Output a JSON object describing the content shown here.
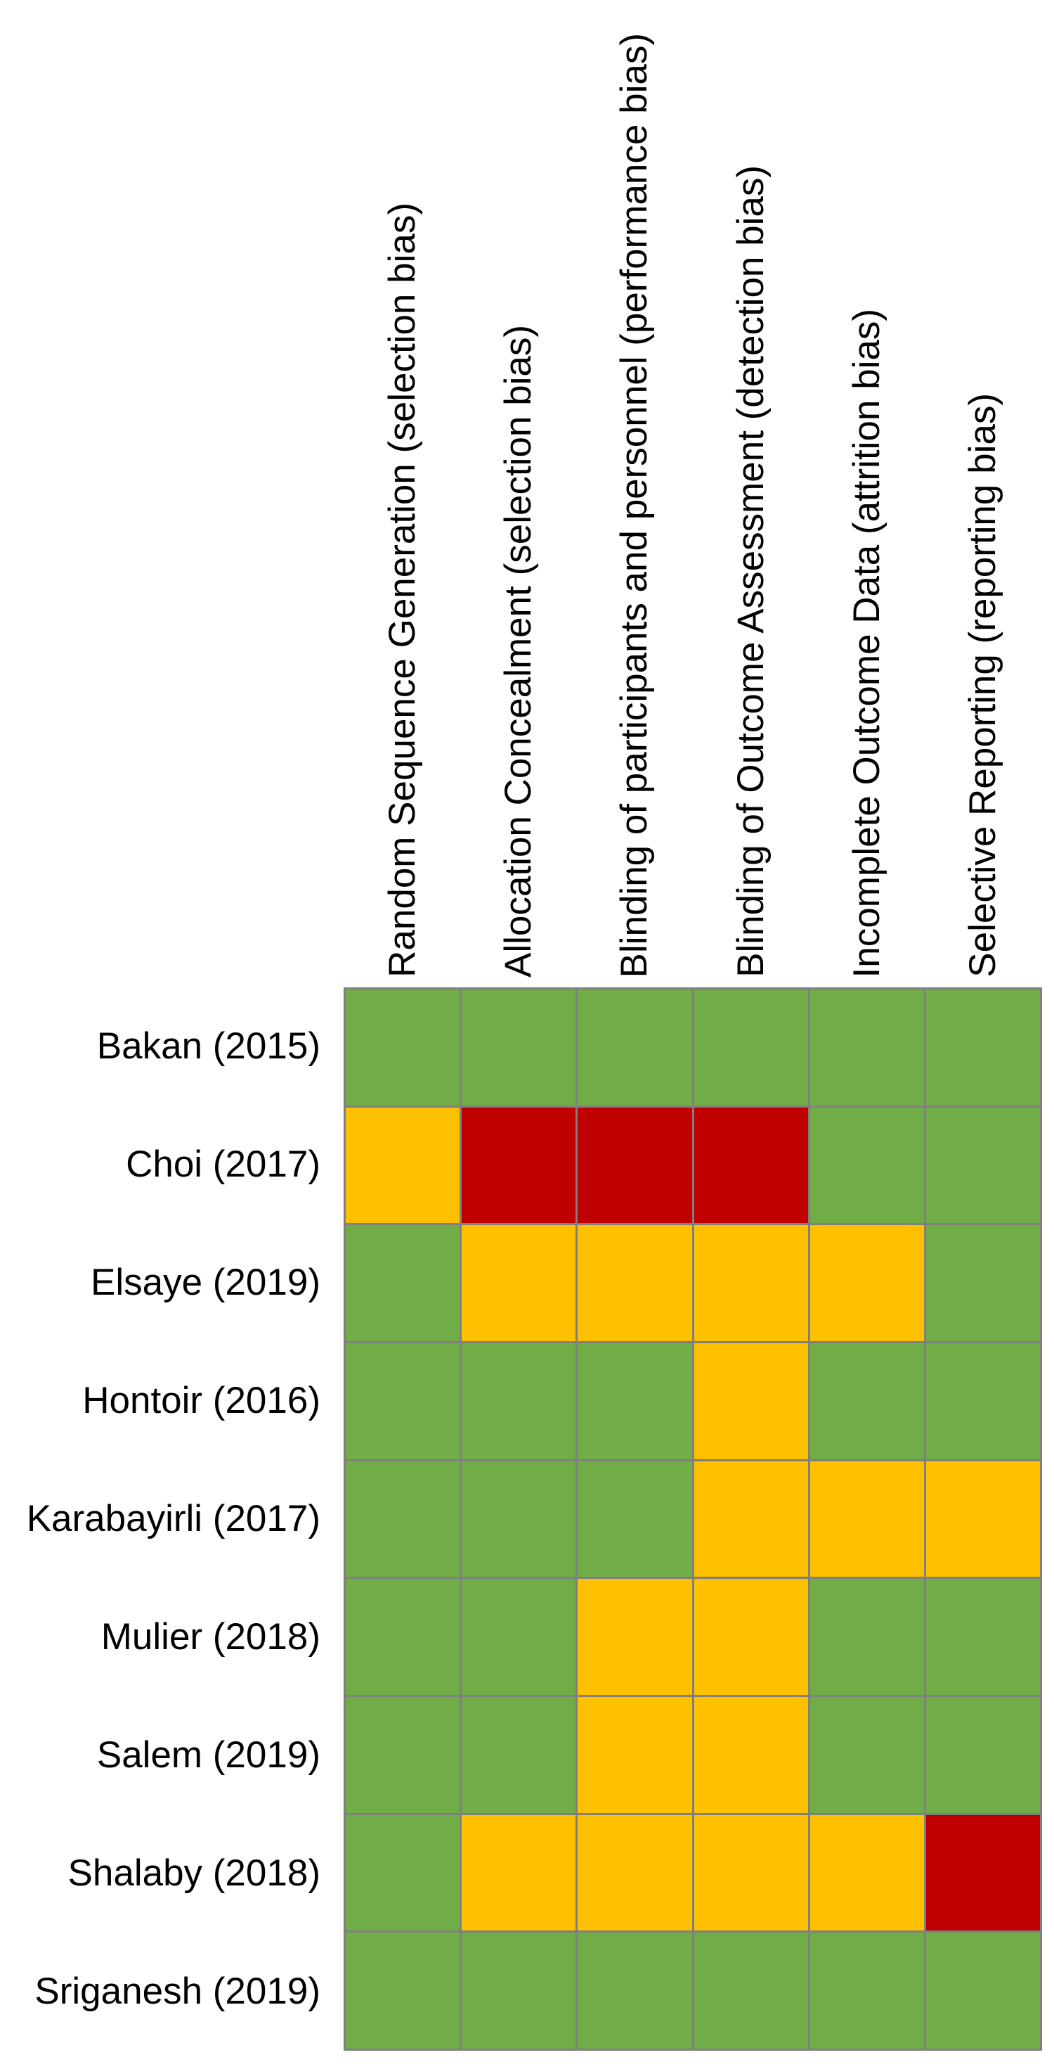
{
  "chart_data": {
    "type": "heatmap",
    "title": "",
    "xlabel": "",
    "ylabel": "",
    "legend_position": "none",
    "grid": true,
    "background": "#FFFFFF",
    "grid_line_color": "#7F7F7F",
    "color_map": {
      "low": "#70AD47",
      "unclear": "#FFC000",
      "high": "#C00000"
    },
    "columns": [
      "Random Sequence Generation (selection bias)",
      "Allocation Concealment (selection bias)",
      "Blinding of participants and personnel (performance bias)",
      "Blinding of Outcome Assessment (detection bias)",
      "Incomplete Outcome Data (attrition bias)",
      "Selective Reporting (reporting bias)"
    ],
    "rows": [
      {
        "label": "Bakan (2015)",
        "judgements": [
          "low",
          "low",
          "low",
          "low",
          "low",
          "low"
        ]
      },
      {
        "label": "Choi (2017)",
        "judgements": [
          "unclear",
          "high",
          "high",
          "high",
          "low",
          "low"
        ]
      },
      {
        "label": "Elsaye (2019)",
        "judgements": [
          "low",
          "unclear",
          "unclear",
          "unclear",
          "unclear",
          "low"
        ]
      },
      {
        "label": "Hontoir (2016)",
        "judgements": [
          "low",
          "low",
          "low",
          "unclear",
          "low",
          "low"
        ]
      },
      {
        "label": "Karabayirli (2017)",
        "judgements": [
          "low",
          "low",
          "low",
          "unclear",
          "unclear",
          "unclear"
        ]
      },
      {
        "label": "Mulier (2018)",
        "judgements": [
          "low",
          "low",
          "unclear",
          "unclear",
          "low",
          "low"
        ]
      },
      {
        "label": "Salem (2019)",
        "judgements": [
          "low",
          "low",
          "unclear",
          "unclear",
          "low",
          "low"
        ]
      },
      {
        "label": "Shalaby (2018)",
        "judgements": [
          "low",
          "unclear",
          "unclear",
          "unclear",
          "unclear",
          "high"
        ]
      },
      {
        "label": "Sriganesh (2019)",
        "judgements": [
          "low",
          "low",
          "low",
          "low",
          "low",
          "low"
        ]
      }
    ]
  }
}
